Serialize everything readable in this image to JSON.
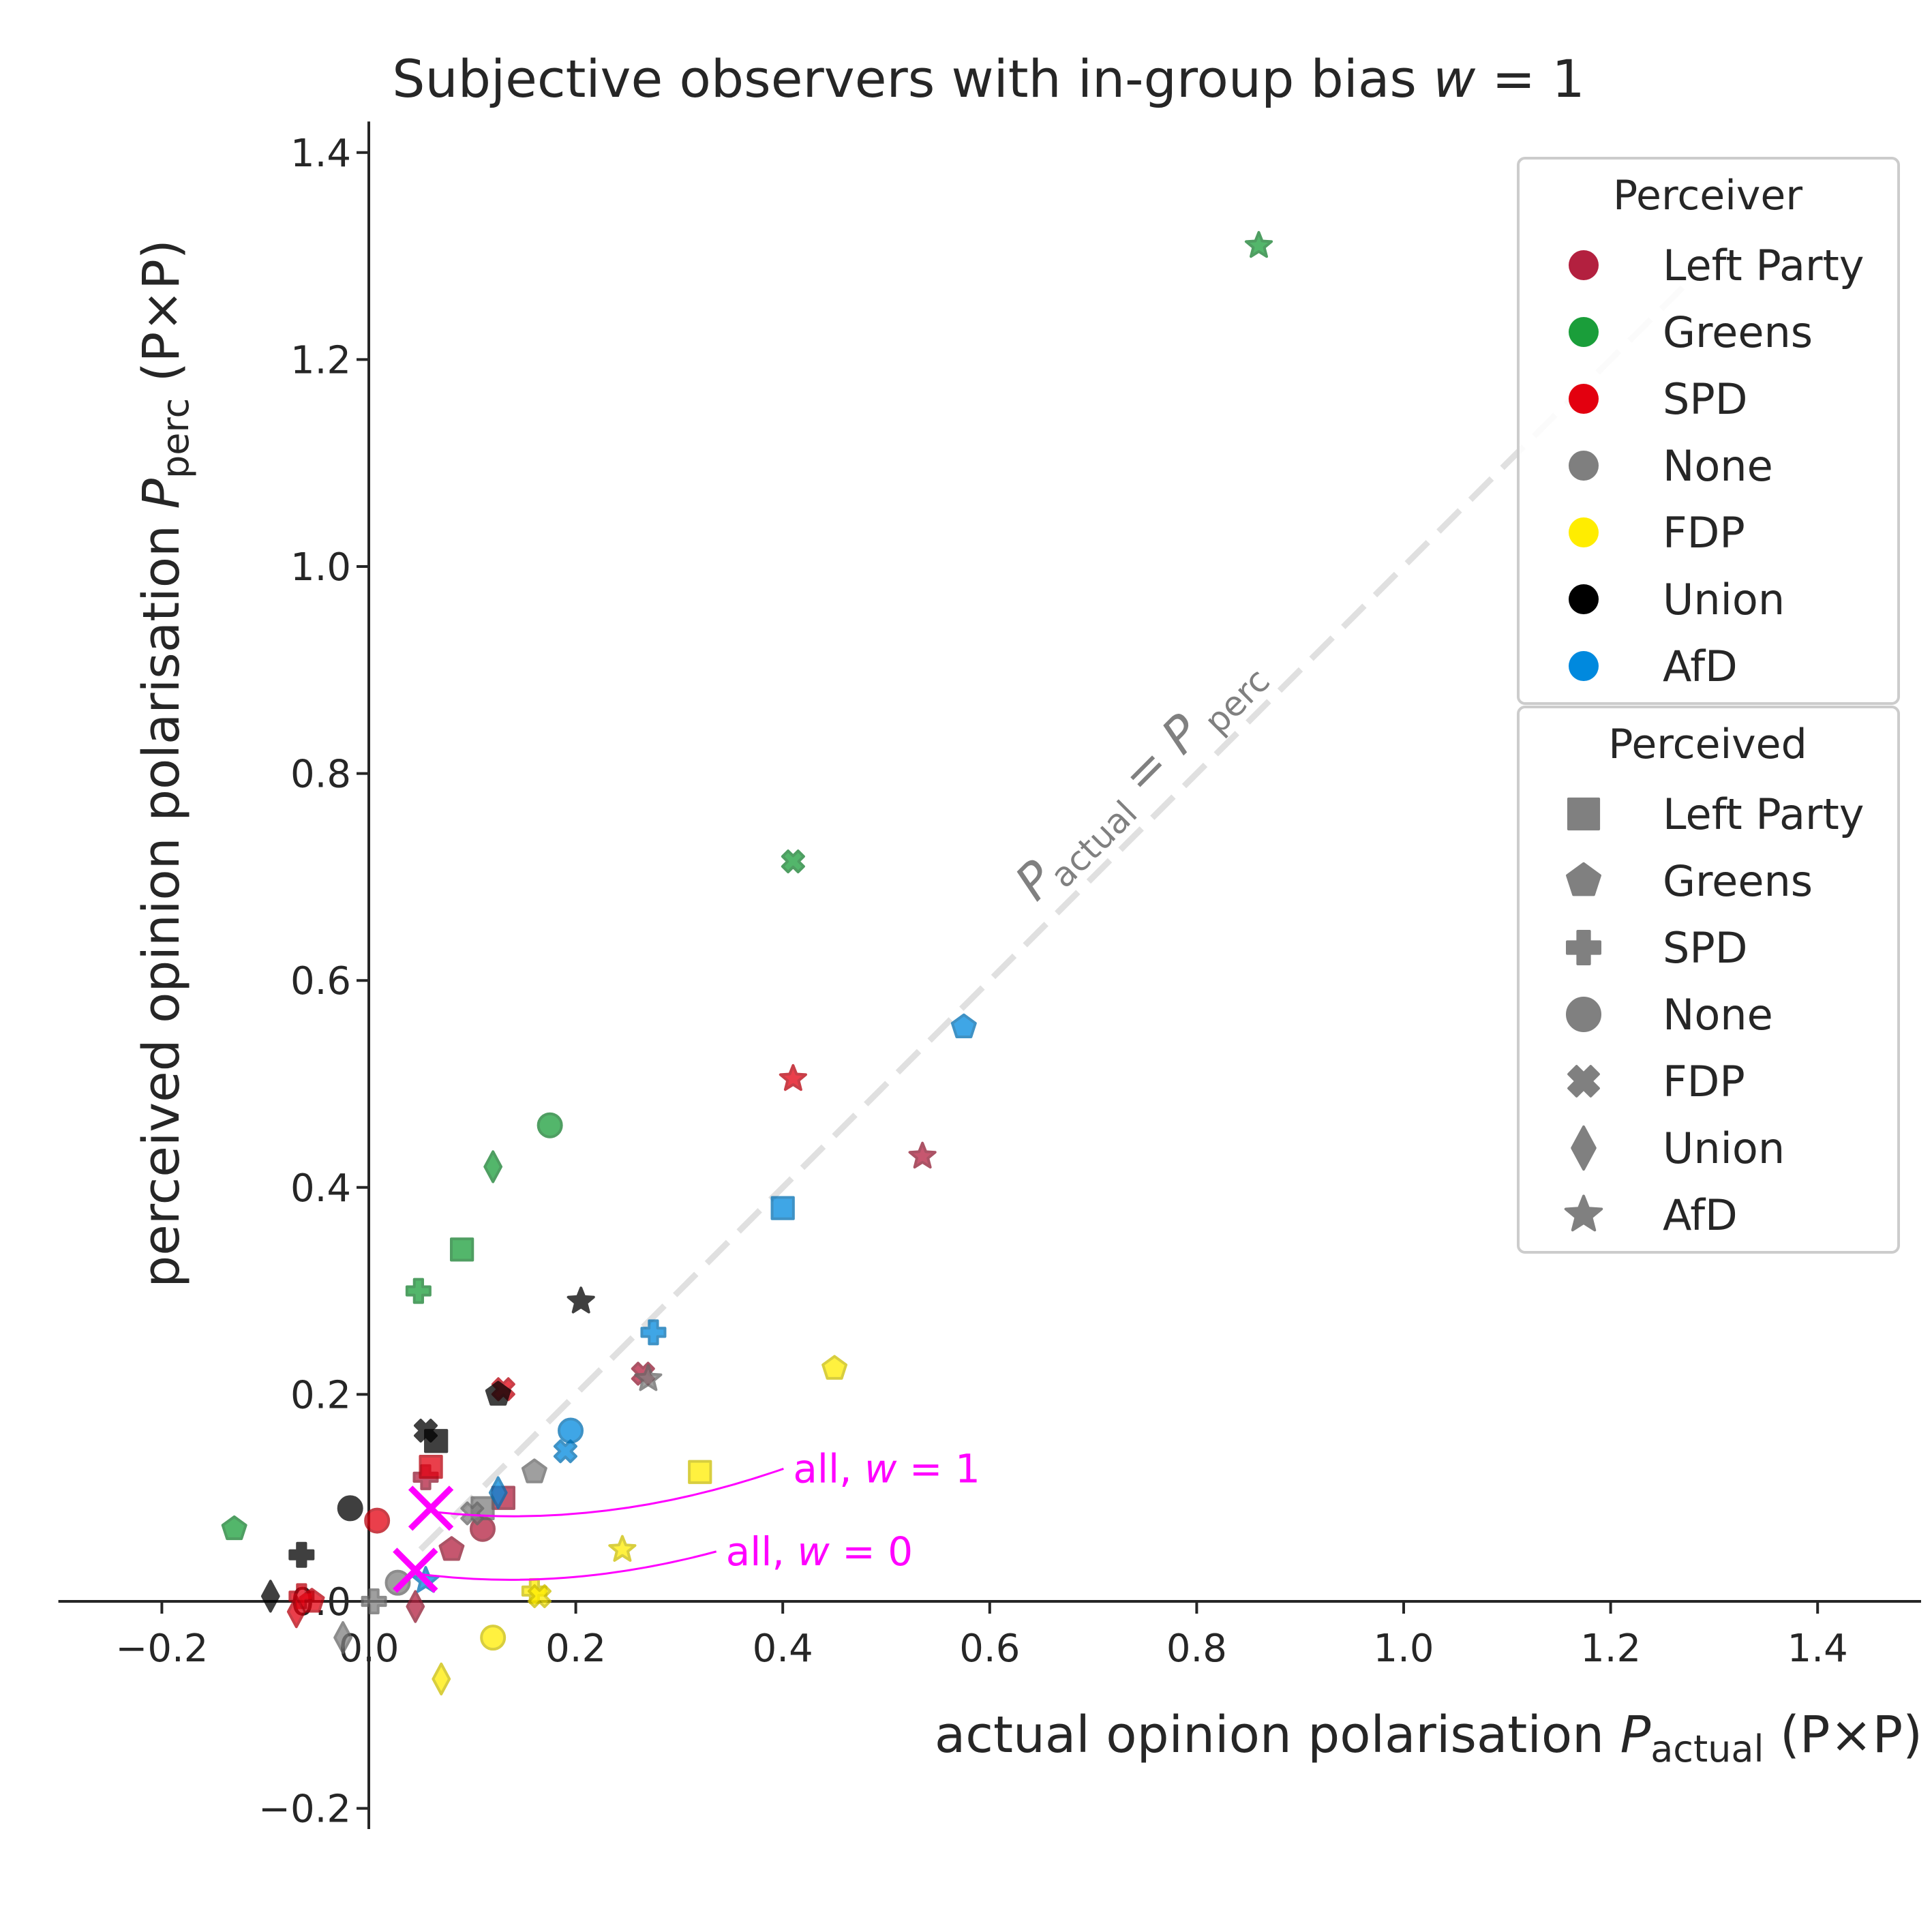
{
  "chart_data": {
    "type": "scatter",
    "title": "Subjective observers with in-group bias w = 1",
    "xlabel": "actual opinion polarisation P_actual (P×P)",
    "ylabel": "perceived opinion polarisation P_perc (P×P)",
    "xlim": [
      -0.3,
      1.5
    ],
    "ylim": [
      -0.22,
      1.42
    ],
    "xticks": [
      -0.2,
      0.0,
      0.2,
      0.4,
      0.6,
      0.8,
      1.0,
      1.2,
      1.4
    ],
    "yticks": [
      -0.2,
      0.0,
      0.2,
      0.4,
      0.6,
      0.8,
      1.0,
      1.2,
      1.4
    ],
    "xtick_labels": [
      "−0.2",
      "0.0",
      "0.2",
      "0.4",
      "0.6",
      "0.8",
      "1.0",
      "1.2",
      "1.4"
    ],
    "ytick_labels": [
      "−0.2",
      "0.0",
      "0.2",
      "0.4",
      "0.6",
      "0.8",
      "1.0",
      "1.2",
      "1.4"
    ],
    "grid": false,
    "diagonal": {
      "from": [
        0.05,
        0.05
      ],
      "to": [
        1.27,
        1.27
      ],
      "label": "P_actual = P_perc",
      "color": "#d9d9d9"
    },
    "colors": {
      "Left Party": "#b3203f",
      "Greens": "#1a9e3a",
      "SPD": "#e3000f",
      "None": "#7f7f7f",
      "FDP": "#ffed00",
      "Union": "#000000",
      "AfD": "#0089de"
    },
    "marker_shapes": {
      "Left Party": "square",
      "Greens": "pentagon",
      "SPD": "plus",
      "None": "circle",
      "FDP": "x",
      "Union": "diamond",
      "AfD": "star"
    },
    "points": [
      {
        "perceiver": "Left Party",
        "perceived": "Left Party",
        "x": 0.13,
        "y": 0.1
      },
      {
        "perceiver": "Left Party",
        "perceived": "Greens",
        "x": 0.08,
        "y": 0.05
      },
      {
        "perceiver": "Left Party",
        "perceived": "SPD",
        "x": 0.055,
        "y": 0.12
      },
      {
        "perceiver": "Left Party",
        "perceived": "None",
        "x": 0.11,
        "y": 0.07
      },
      {
        "perceiver": "Left Party",
        "perceived": "FDP",
        "x": 0.265,
        "y": 0.22
      },
      {
        "perceiver": "Left Party",
        "perceived": "Union",
        "x": 0.045,
        "y": -0.005
      },
      {
        "perceiver": "Left Party",
        "perceived": "AfD",
        "x": 0.535,
        "y": 0.43
      },
      {
        "perceiver": "Greens",
        "perceived": "Left Party",
        "x": 0.09,
        "y": 0.34
      },
      {
        "perceiver": "Greens",
        "perceived": "Greens",
        "x": -0.13,
        "y": 0.07
      },
      {
        "perceiver": "Greens",
        "perceived": "SPD",
        "x": 0.048,
        "y": 0.3
      },
      {
        "perceiver": "Greens",
        "perceived": "None",
        "x": 0.175,
        "y": 0.46
      },
      {
        "perceiver": "Greens",
        "perceived": "FDP",
        "x": 0.41,
        "y": 0.715
      },
      {
        "perceiver": "Greens",
        "perceived": "Union",
        "x": 0.12,
        "y": 0.42
      },
      {
        "perceiver": "Greens",
        "perceived": "AfD",
        "x": 0.86,
        "y": 1.31
      },
      {
        "perceiver": "SPD",
        "perceived": "Left Party",
        "x": 0.06,
        "y": 0.13
      },
      {
        "perceiver": "SPD",
        "perceived": "Greens",
        "x": -0.055,
        "y": 0.0
      },
      {
        "perceiver": "SPD",
        "perceived": "SPD",
        "x": -0.065,
        "y": 0.005
      },
      {
        "perceiver": "SPD",
        "perceived": "None",
        "x": 0.008,
        "y": 0.078
      },
      {
        "perceiver": "SPD",
        "perceived": "FDP",
        "x": 0.13,
        "y": 0.205
      },
      {
        "perceiver": "SPD",
        "perceived": "Union",
        "x": -0.07,
        "y": -0.01
      },
      {
        "perceiver": "SPD",
        "perceived": "AfD",
        "x": 0.41,
        "y": 0.505
      },
      {
        "perceiver": "None",
        "perceived": "Left Party",
        "x": 0.11,
        "y": 0.09
      },
      {
        "perceiver": "None",
        "perceived": "Greens",
        "x": 0.16,
        "y": 0.125
      },
      {
        "perceiver": "None",
        "perceived": "SPD",
        "x": 0.005,
        "y": 0.0
      },
      {
        "perceiver": "None",
        "perceived": "None",
        "x": 0.028,
        "y": 0.018
      },
      {
        "perceiver": "None",
        "perceived": "FDP",
        "x": 0.1,
        "y": 0.085
      },
      {
        "perceiver": "None",
        "perceived": "Union",
        "x": -0.025,
        "y": -0.035
      },
      {
        "perceiver": "None",
        "perceived": "AfD",
        "x": 0.27,
        "y": 0.215
      },
      {
        "perceiver": "FDP",
        "perceived": "Left Party",
        "x": 0.32,
        "y": 0.125
      },
      {
        "perceiver": "FDP",
        "perceived": "Greens",
        "x": 0.45,
        "y": 0.225
      },
      {
        "perceiver": "FDP",
        "perceived": "SPD",
        "x": 0.16,
        "y": 0.01
      },
      {
        "perceiver": "FDP",
        "perceived": "None",
        "x": 0.12,
        "y": -0.035
      },
      {
        "perceiver": "FDP",
        "perceived": "FDP",
        "x": 0.165,
        "y": 0.005
      },
      {
        "perceiver": "FDP",
        "perceived": "Union",
        "x": 0.07,
        "y": -0.075
      },
      {
        "perceiver": "FDP",
        "perceived": "AfD",
        "x": 0.245,
        "y": 0.05
      },
      {
        "perceiver": "Union",
        "perceived": "Left Party",
        "x": 0.065,
        "y": 0.155
      },
      {
        "perceiver": "Union",
        "perceived": "Greens",
        "x": 0.125,
        "y": 0.2
      },
      {
        "perceiver": "Union",
        "perceived": "SPD",
        "x": -0.065,
        "y": 0.045
      },
      {
        "perceiver": "Union",
        "perceived": "None",
        "x": -0.018,
        "y": 0.09
      },
      {
        "perceiver": "Union",
        "perceived": "FDP",
        "x": 0.055,
        "y": 0.165
      },
      {
        "perceiver": "Union",
        "perceived": "Union",
        "x": -0.095,
        "y": 0.005
      },
      {
        "perceiver": "Union",
        "perceived": "AfD",
        "x": 0.205,
        "y": 0.29
      },
      {
        "perceiver": "AfD",
        "perceived": "Left Party",
        "x": 0.4,
        "y": 0.38
      },
      {
        "perceiver": "AfD",
        "perceived": "Greens",
        "x": 0.575,
        "y": 0.555
      },
      {
        "perceiver": "AfD",
        "perceived": "SPD",
        "x": 0.275,
        "y": 0.26
      },
      {
        "perceiver": "AfD",
        "perceived": "None",
        "x": 0.195,
        "y": 0.165
      },
      {
        "perceiver": "AfD",
        "perceived": "FDP",
        "x": 0.19,
        "y": 0.145
      },
      {
        "perceiver": "AfD",
        "perceived": "Union",
        "x": 0.125,
        "y": 0.105
      },
      {
        "perceiver": "AfD",
        "perceived": "AfD",
        "x": 0.055,
        "y": 0.02
      }
    ],
    "aggregates": [
      {
        "label": "all, w = 1",
        "x": 0.06,
        "y": 0.09,
        "text_x": 0.41,
        "text_y": 0.115
      },
      {
        "label": "all, w = 0",
        "x": 0.045,
        "y": 0.03,
        "text_x": 0.345,
        "text_y": 0.035
      }
    ],
    "legends": [
      {
        "title": "Perceiver",
        "kind": "color",
        "placement": "top-right",
        "entries": [
          "Left Party",
          "Greens",
          "SPD",
          "None",
          "FDP",
          "Union",
          "AfD"
        ]
      },
      {
        "title": "Perceived",
        "kind": "shape",
        "placement": "right",
        "entries": [
          "Left Party",
          "Greens",
          "SPD",
          "None",
          "FDP",
          "Union",
          "AfD"
        ]
      }
    ]
  }
}
